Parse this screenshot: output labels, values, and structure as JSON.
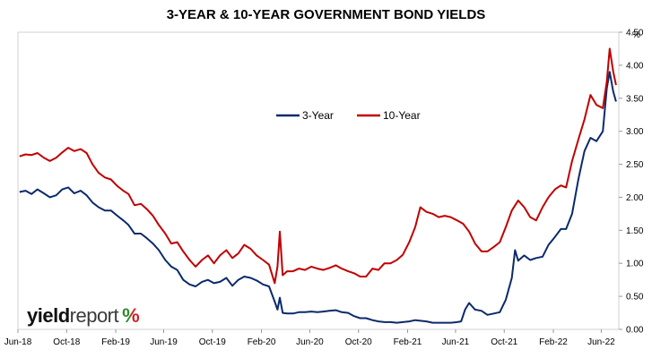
{
  "chart_data": {
    "type": "line",
    "title": "3-YEAR & 10-YEAR GOVERNMENT BOND YIELDS",
    "ylabel": "%",
    "ylim": [
      0,
      4.5
    ],
    "yticks": [
      "0.00",
      "0.50",
      "1.00",
      "1.50",
      "2.00",
      "2.50",
      "3.00",
      "3.50",
      "4.00",
      "4.50"
    ],
    "xlim": [
      "2018-06-01",
      "2022-07-15"
    ],
    "xticks": [
      {
        "date": "2018-06-01",
        "label": "Jun-18"
      },
      {
        "date": "2018-10-01",
        "label": "Oct-18"
      },
      {
        "date": "2019-02-01",
        "label": "Feb-19"
      },
      {
        "date": "2019-06-01",
        "label": "Jun-19"
      },
      {
        "date": "2019-10-01",
        "label": "Oct-19"
      },
      {
        "date": "2020-02-01",
        "label": "Feb-20"
      },
      {
        "date": "2020-06-01",
        "label": "Jun-20"
      },
      {
        "date": "2020-10-01",
        "label": "Oct-20"
      },
      {
        "date": "2021-02-01",
        "label": "Feb-21"
      },
      {
        "date": "2021-06-01",
        "label": "Jun-21"
      },
      {
        "date": "2021-10-01",
        "label": "Oct-21"
      },
      {
        "date": "2022-02-01",
        "label": "Feb-22"
      },
      {
        "date": "2022-06-01",
        "label": "Jun-22"
      }
    ],
    "grid": false,
    "legend_position": "center-top",
    "series": [
      {
        "name": "3-Year",
        "color": "#0b2a6b",
        "points": [
          [
            "2018-06-05",
            2.08
          ],
          [
            "2018-06-20",
            2.1
          ],
          [
            "2018-07-05",
            2.05
          ],
          [
            "2018-07-20",
            2.12
          ],
          [
            "2018-08-05",
            2.06
          ],
          [
            "2018-08-20",
            2.0
          ],
          [
            "2018-09-05",
            2.03
          ],
          [
            "2018-09-20",
            2.12
          ],
          [
            "2018-10-05",
            2.15
          ],
          [
            "2018-10-20",
            2.06
          ],
          [
            "2018-11-05",
            2.1
          ],
          [
            "2018-11-20",
            2.03
          ],
          [
            "2018-12-05",
            1.92
          ],
          [
            "2018-12-20",
            1.85
          ],
          [
            "2019-01-05",
            1.8
          ],
          [
            "2019-01-20",
            1.8
          ],
          [
            "2019-02-05",
            1.72
          ],
          [
            "2019-02-20",
            1.65
          ],
          [
            "2019-03-05",
            1.58
          ],
          [
            "2019-03-20",
            1.45
          ],
          [
            "2019-04-05",
            1.45
          ],
          [
            "2019-04-20",
            1.38
          ],
          [
            "2019-05-05",
            1.3
          ],
          [
            "2019-05-20",
            1.2
          ],
          [
            "2019-06-05",
            1.05
          ],
          [
            "2019-06-20",
            0.95
          ],
          [
            "2019-07-05",
            0.9
          ],
          [
            "2019-07-20",
            0.75
          ],
          [
            "2019-08-05",
            0.68
          ],
          [
            "2019-08-20",
            0.65
          ],
          [
            "2019-09-05",
            0.72
          ],
          [
            "2019-09-20",
            0.75
          ],
          [
            "2019-10-05",
            0.7
          ],
          [
            "2019-10-20",
            0.72
          ],
          [
            "2019-11-05",
            0.78
          ],
          [
            "2019-11-20",
            0.66
          ],
          [
            "2019-12-05",
            0.75
          ],
          [
            "2019-12-20",
            0.8
          ],
          [
            "2020-01-05",
            0.78
          ],
          [
            "2020-01-20",
            0.74
          ],
          [
            "2020-02-05",
            0.68
          ],
          [
            "2020-02-20",
            0.65
          ],
          [
            "2020-03-05",
            0.42
          ],
          [
            "2020-03-12",
            0.3
          ],
          [
            "2020-03-18",
            0.48
          ],
          [
            "2020-03-25",
            0.25
          ],
          [
            "2020-04-05",
            0.24
          ],
          [
            "2020-04-20",
            0.24
          ],
          [
            "2020-05-05",
            0.26
          ],
          [
            "2020-05-20",
            0.26
          ],
          [
            "2020-06-05",
            0.27
          ],
          [
            "2020-06-20",
            0.26
          ],
          [
            "2020-07-05",
            0.27
          ],
          [
            "2020-07-20",
            0.28
          ],
          [
            "2020-08-05",
            0.29
          ],
          [
            "2020-08-20",
            0.26
          ],
          [
            "2020-09-05",
            0.25
          ],
          [
            "2020-09-20",
            0.2
          ],
          [
            "2020-10-05",
            0.17
          ],
          [
            "2020-10-20",
            0.17
          ],
          [
            "2020-11-05",
            0.14
          ],
          [
            "2020-11-20",
            0.12
          ],
          [
            "2020-12-05",
            0.11
          ],
          [
            "2020-12-20",
            0.11
          ],
          [
            "2021-01-05",
            0.1
          ],
          [
            "2021-01-20",
            0.11
          ],
          [
            "2021-02-05",
            0.12
          ],
          [
            "2021-02-20",
            0.14
          ],
          [
            "2021-03-05",
            0.13
          ],
          [
            "2021-03-20",
            0.12
          ],
          [
            "2021-04-05",
            0.1
          ],
          [
            "2021-04-20",
            0.1
          ],
          [
            "2021-05-05",
            0.1
          ],
          [
            "2021-05-20",
            0.1
          ],
          [
            "2021-06-05",
            0.11
          ],
          [
            "2021-06-15",
            0.12
          ],
          [
            "2021-06-25",
            0.3
          ],
          [
            "2021-07-05",
            0.4
          ],
          [
            "2021-07-20",
            0.3
          ],
          [
            "2021-08-05",
            0.28
          ],
          [
            "2021-08-20",
            0.22
          ],
          [
            "2021-09-05",
            0.24
          ],
          [
            "2021-09-20",
            0.26
          ],
          [
            "2021-10-05",
            0.45
          ],
          [
            "2021-10-20",
            0.78
          ],
          [
            "2021-10-28",
            1.2
          ],
          [
            "2021-11-05",
            1.04
          ],
          [
            "2021-11-20",
            1.12
          ],
          [
            "2021-12-05",
            1.05
          ],
          [
            "2021-12-20",
            1.08
          ],
          [
            "2022-01-05",
            1.1
          ],
          [
            "2022-01-20",
            1.28
          ],
          [
            "2022-02-05",
            1.4
          ],
          [
            "2022-02-20",
            1.52
          ],
          [
            "2022-03-05",
            1.52
          ],
          [
            "2022-03-20",
            1.75
          ],
          [
            "2022-04-05",
            2.28
          ],
          [
            "2022-04-20",
            2.7
          ],
          [
            "2022-05-05",
            2.9
          ],
          [
            "2022-05-20",
            2.85
          ],
          [
            "2022-06-05",
            3.0
          ],
          [
            "2022-06-15",
            3.65
          ],
          [
            "2022-06-22",
            3.9
          ],
          [
            "2022-07-01",
            3.6
          ],
          [
            "2022-07-08",
            3.45
          ]
        ]
      },
      {
        "name": "10-Year",
        "color": "#c00000",
        "points": [
          [
            "2018-06-05",
            2.62
          ],
          [
            "2018-06-20",
            2.65
          ],
          [
            "2018-07-05",
            2.64
          ],
          [
            "2018-07-20",
            2.67
          ],
          [
            "2018-08-05",
            2.6
          ],
          [
            "2018-08-20",
            2.55
          ],
          [
            "2018-09-05",
            2.6
          ],
          [
            "2018-09-20",
            2.68
          ],
          [
            "2018-10-05",
            2.75
          ],
          [
            "2018-10-20",
            2.7
          ],
          [
            "2018-11-05",
            2.73
          ],
          [
            "2018-11-20",
            2.67
          ],
          [
            "2018-12-05",
            2.5
          ],
          [
            "2018-12-20",
            2.37
          ],
          [
            "2019-01-05",
            2.3
          ],
          [
            "2019-01-20",
            2.27
          ],
          [
            "2019-02-05",
            2.17
          ],
          [
            "2019-02-20",
            2.1
          ],
          [
            "2019-03-05",
            2.05
          ],
          [
            "2019-03-20",
            1.88
          ],
          [
            "2019-04-05",
            1.9
          ],
          [
            "2019-04-20",
            1.82
          ],
          [
            "2019-05-05",
            1.72
          ],
          [
            "2019-05-20",
            1.58
          ],
          [
            "2019-06-05",
            1.45
          ],
          [
            "2019-06-20",
            1.3
          ],
          [
            "2019-07-05",
            1.32
          ],
          [
            "2019-07-20",
            1.18
          ],
          [
            "2019-08-05",
            1.05
          ],
          [
            "2019-08-20",
            0.95
          ],
          [
            "2019-09-05",
            1.05
          ],
          [
            "2019-09-20",
            1.12
          ],
          [
            "2019-10-05",
            1.0
          ],
          [
            "2019-10-20",
            1.12
          ],
          [
            "2019-11-05",
            1.2
          ],
          [
            "2019-11-20",
            1.08
          ],
          [
            "2019-12-05",
            1.15
          ],
          [
            "2019-12-20",
            1.28
          ],
          [
            "2020-01-05",
            1.22
          ],
          [
            "2020-01-20",
            1.12
          ],
          [
            "2020-02-05",
            1.05
          ],
          [
            "2020-02-20",
            0.98
          ],
          [
            "2020-03-05",
            0.7
          ],
          [
            "2020-03-12",
            0.95
          ],
          [
            "2020-03-18",
            1.48
          ],
          [
            "2020-03-25",
            0.82
          ],
          [
            "2020-04-05",
            0.88
          ],
          [
            "2020-04-20",
            0.88
          ],
          [
            "2020-05-05",
            0.92
          ],
          [
            "2020-05-20",
            0.9
          ],
          [
            "2020-06-05",
            0.95
          ],
          [
            "2020-06-20",
            0.92
          ],
          [
            "2020-07-05",
            0.9
          ],
          [
            "2020-07-20",
            0.93
          ],
          [
            "2020-08-05",
            0.97
          ],
          [
            "2020-08-20",
            0.92
          ],
          [
            "2020-09-05",
            0.88
          ],
          [
            "2020-09-20",
            0.85
          ],
          [
            "2020-10-05",
            0.8
          ],
          [
            "2020-10-20",
            0.8
          ],
          [
            "2020-11-05",
            0.92
          ],
          [
            "2020-11-20",
            0.9
          ],
          [
            "2020-12-05",
            1.0
          ],
          [
            "2020-12-20",
            1.0
          ],
          [
            "2021-01-05",
            1.05
          ],
          [
            "2021-01-20",
            1.13
          ],
          [
            "2021-02-05",
            1.32
          ],
          [
            "2021-02-20",
            1.55
          ],
          [
            "2021-03-05",
            1.85
          ],
          [
            "2021-03-20",
            1.78
          ],
          [
            "2021-04-05",
            1.75
          ],
          [
            "2021-04-20",
            1.7
          ],
          [
            "2021-05-05",
            1.72
          ],
          [
            "2021-05-20",
            1.7
          ],
          [
            "2021-06-05",
            1.65
          ],
          [
            "2021-06-20",
            1.6
          ],
          [
            "2021-07-05",
            1.48
          ],
          [
            "2021-07-20",
            1.3
          ],
          [
            "2021-08-05",
            1.18
          ],
          [
            "2021-08-20",
            1.18
          ],
          [
            "2021-09-05",
            1.25
          ],
          [
            "2021-09-20",
            1.32
          ],
          [
            "2021-10-05",
            1.55
          ],
          [
            "2021-10-20",
            1.8
          ],
          [
            "2021-11-05",
            1.95
          ],
          [
            "2021-11-20",
            1.85
          ],
          [
            "2021-12-05",
            1.7
          ],
          [
            "2021-12-20",
            1.65
          ],
          [
            "2022-01-05",
            1.85
          ],
          [
            "2022-01-20",
            2.0
          ],
          [
            "2022-02-05",
            2.12
          ],
          [
            "2022-02-20",
            2.18
          ],
          [
            "2022-03-05",
            2.15
          ],
          [
            "2022-03-20",
            2.55
          ],
          [
            "2022-04-05",
            2.88
          ],
          [
            "2022-04-20",
            3.18
          ],
          [
            "2022-05-05",
            3.55
          ],
          [
            "2022-05-20",
            3.4
          ],
          [
            "2022-06-05",
            3.35
          ],
          [
            "2022-06-15",
            3.75
          ],
          [
            "2022-06-22",
            4.25
          ],
          [
            "2022-07-01",
            3.9
          ],
          [
            "2022-07-08",
            3.7
          ]
        ]
      }
    ]
  },
  "branding": {
    "logo_word1": "yield",
    "logo_word2": "report",
    "logo_symbol": "%"
  }
}
